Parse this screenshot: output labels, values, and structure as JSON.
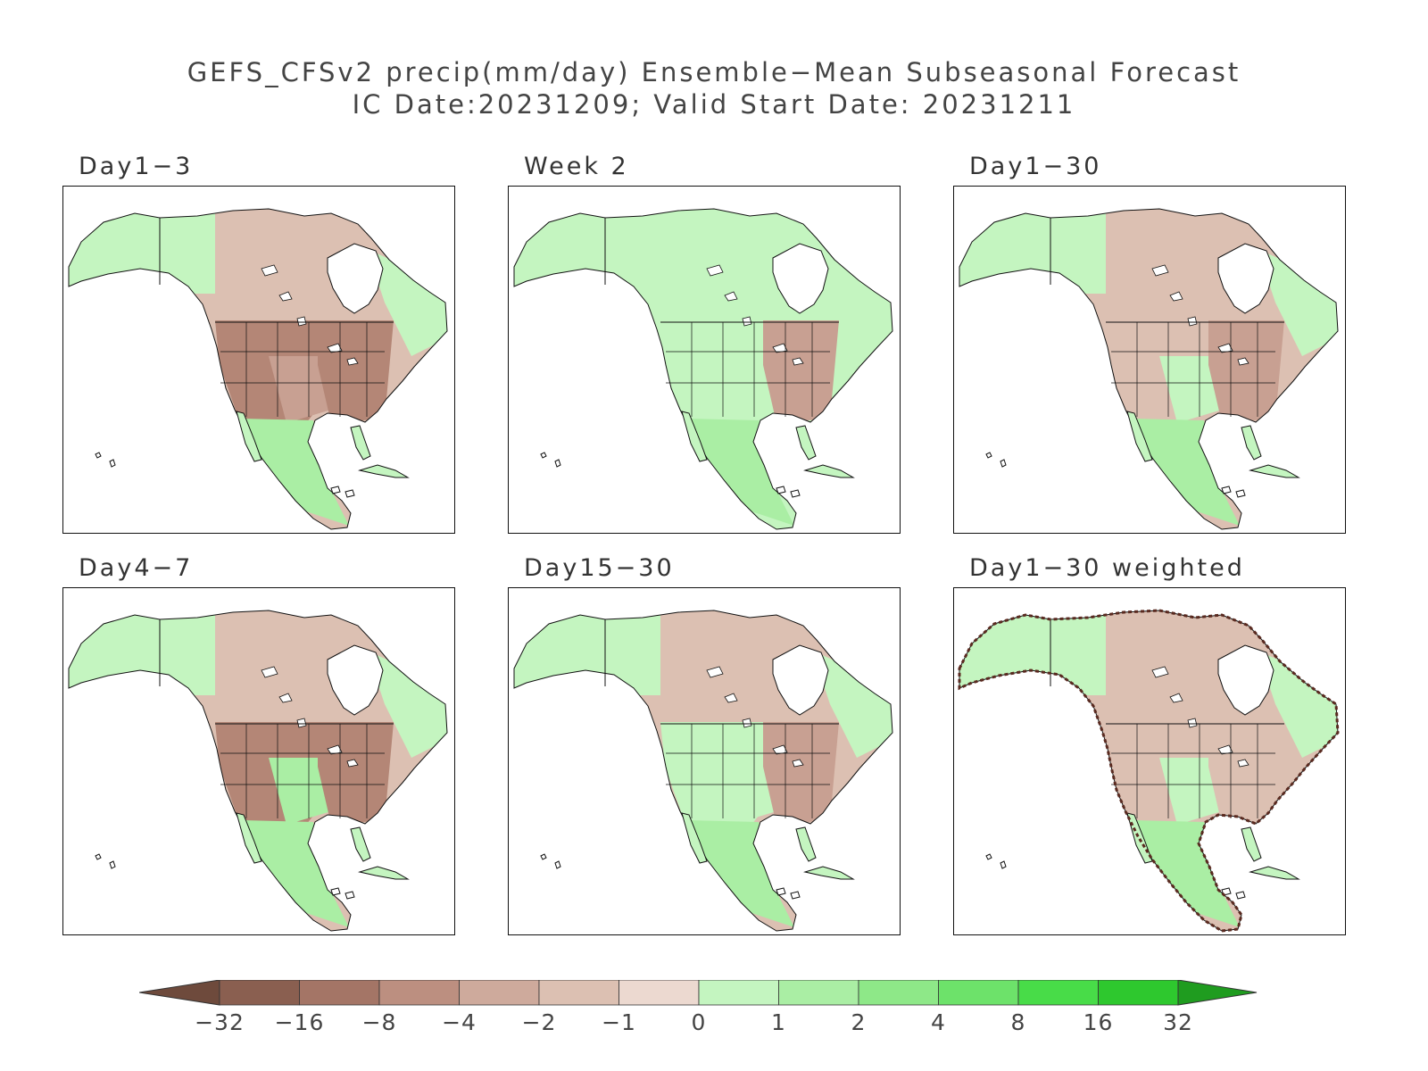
{
  "title": {
    "line1": "GEFS_CFSv2 precip(mm/day) Ensemble−Mean Subseasonal Forecast",
    "line2": "IC Date:20231209; Valid Start Date: 20231211"
  },
  "panels": [
    {
      "label": "Day1−3",
      "dominant": "dry",
      "east_level": 3,
      "west_level": 3,
      "southwest_level": 2,
      "north_level": 1
    },
    {
      "label": "Week 2",
      "dominant": "mixed",
      "east_level": 2,
      "west_level": -1,
      "southwest_level": -1,
      "north_level": -1
    },
    {
      "label": "Day1−30",
      "dominant": "dry",
      "east_level": 2,
      "west_level": 1,
      "southwest_level": -1,
      "north_level": 1
    },
    {
      "label": "Day4−7",
      "dominant": "dry",
      "east_level": 3,
      "west_level": 3,
      "southwest_level": -2,
      "north_level": 1
    },
    {
      "label": "Day15−30",
      "dominant": "dry",
      "east_level": 2,
      "west_level": -1,
      "southwest_level": -1,
      "north_level": 1
    },
    {
      "label": "Day1−30 weighted",
      "dominant": "mixed",
      "east_level": 1,
      "west_level": 1,
      "southwest_level": -1,
      "north_level": 1,
      "coast_outline": true
    }
  ],
  "colorbar": {
    "labels": [
      "−32",
      "−16",
      "−8",
      "−4",
      "−2",
      "−1",
      "0",
      "1",
      "2",
      "4",
      "8",
      "16",
      "32"
    ],
    "colors": [
      "#6e4a3c",
      "#8a5f50",
      "#a47566",
      "#bc8f80",
      "#ceaa9c",
      "#dcc0b2",
      "#ecd9d0",
      "#c4f5c0",
      "#aaeea4",
      "#8ee888",
      "#6de26a",
      "#48dc48",
      "#2ec82e",
      "#1f9c1f"
    ]
  },
  "legend_colors": {
    "dry_1": "#ecd9d0",
    "dry_2": "#dcc0b2",
    "dry_3": "#c8a092",
    "wet_1": "#c4f5c0",
    "wet_2": "#aaeea4",
    "ocean": "#ffffff",
    "coast": "#111111"
  }
}
